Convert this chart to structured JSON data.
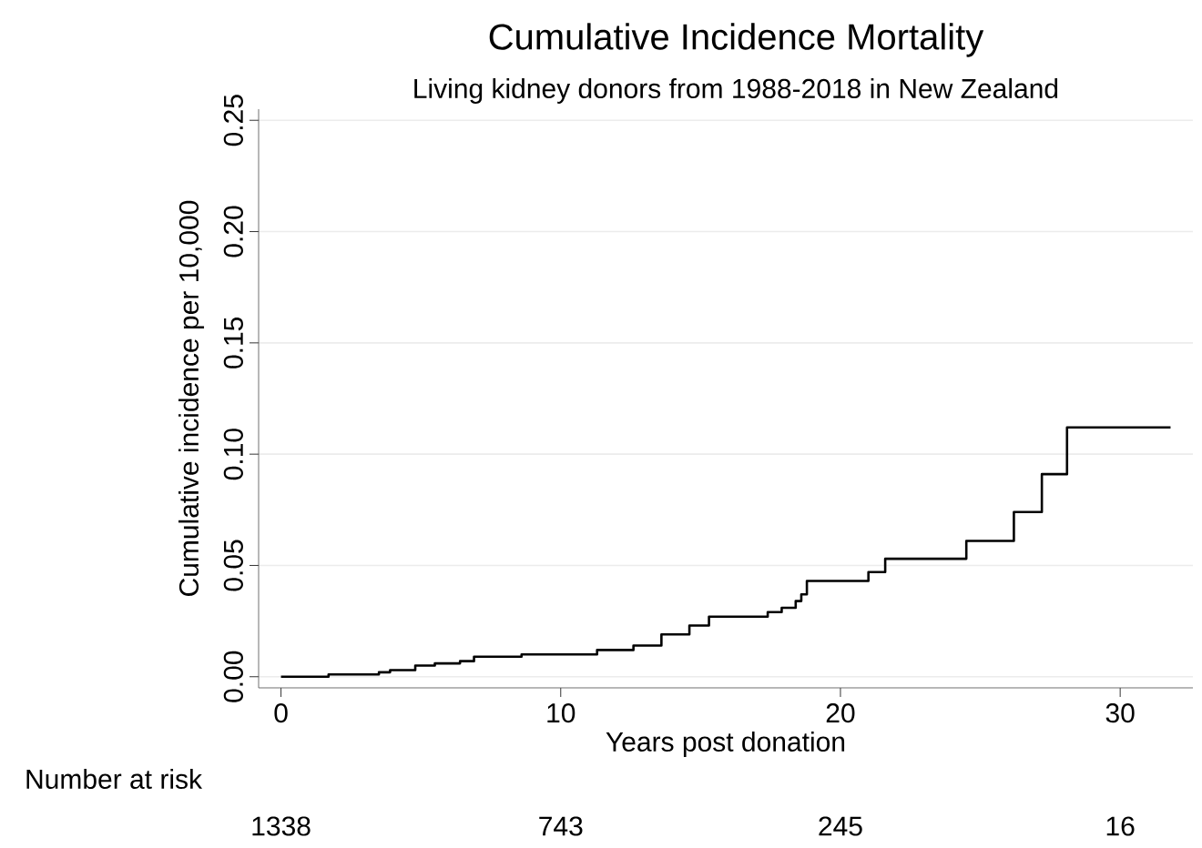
{
  "chart_data": {
    "type": "step",
    "title": "Cumulative Incidence Mortality",
    "subtitle": "Living kidney donors from 1988-2018 in New Zealand",
    "xlabel": "Years post donation",
    "ylabel": "Cumulative incidence per 10,000",
    "series": [
      {
        "color": "#000000",
        "x": [
          0,
          1.7,
          3.5,
          3.9,
          4.8,
          5.5,
          6.4,
          6.9,
          8.6,
          11.3,
          12.6,
          13.6,
          14.6,
          15.3,
          17.4,
          17.9,
          18.4,
          18.6,
          18.8,
          21.0,
          21.6,
          24.5,
          26.2,
          27.2,
          28.1,
          31.8
        ],
        "values": [
          0,
          0.001,
          0.002,
          0.003,
          0.005,
          0.006,
          0.007,
          0.009,
          0.01,
          0.012,
          0.014,
          0.019,
          0.023,
          0.027,
          0.029,
          0.031,
          0.034,
          0.037,
          0.043,
          0.047,
          0.053,
          0.061,
          0.074,
          0.091,
          0.112,
          0.112
        ]
      }
    ],
    "xlim": [
      -0.8,
      32.6
    ],
    "ylim": [
      -0.005,
      0.255
    ],
    "xticks": [
      0,
      10,
      20,
      30
    ],
    "yticks": [
      {
        "value": 0,
        "label": "0.00"
      },
      {
        "value": 0.05,
        "label": "0.05"
      },
      {
        "value": 0.1,
        "label": "0.10"
      },
      {
        "value": 0.15,
        "label": "0.15"
      },
      {
        "value": 0.2,
        "label": "0.20"
      },
      {
        "value": 0.25,
        "label": "0.25"
      }
    ],
    "grid": "y",
    "marker": "none",
    "line_style": "solid",
    "annotations": [
      "Number at risk",
      "1338",
      "743",
      "245",
      "16"
    ]
  }
}
